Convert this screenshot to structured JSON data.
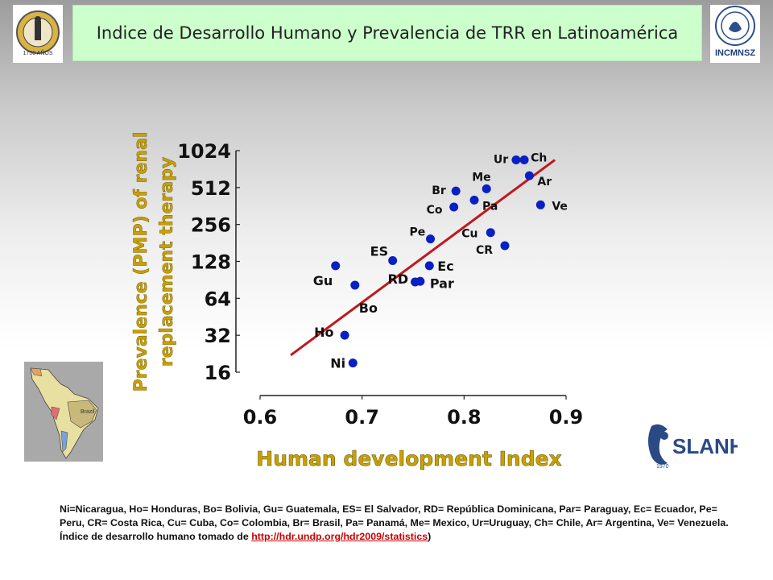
{
  "header": {
    "title": "Indice de Desarrollo Humano y Prevalencia de TRR en Latinoamérica",
    "logo_left_text": "1750 AÑOS",
    "logo_right_text": "INCMNSZ",
    "logo_bottom_text": "SLANH",
    "logo_bottom_year": "1970"
  },
  "map": {
    "label": "Brazil"
  },
  "chart_data": {
    "type": "scatter",
    "xlabel": "Human development Index",
    "ylabel_line1": "Prevalence (PMP) of renal",
    "ylabel_line2": "replacement therapy",
    "xlim": [
      0.6,
      0.9
    ],
    "ylim": [
      16,
      1024
    ],
    "y_scale": "log2",
    "x_ticks": [
      "0.6",
      "0.7",
      "0.8",
      "0.9"
    ],
    "y_ticks": [
      "16",
      "32",
      "64",
      "128",
      "256",
      "512",
      "1024"
    ],
    "points": [
      {
        "label": "Ni",
        "x": 0.691,
        "y": 19
      },
      {
        "label": "Ho",
        "x": 0.683,
        "y": 32
      },
      {
        "label": "Gu",
        "x": 0.674,
        "y": 118
      },
      {
        "label": "Bo",
        "x": 0.693,
        "y": 82
      },
      {
        "label": "ES",
        "x": 0.73,
        "y": 130
      },
      {
        "label": "RD",
        "x": 0.752,
        "y": 87
      },
      {
        "label": "Par",
        "x": 0.757,
        "y": 88
      },
      {
        "label": "Ec",
        "x": 0.766,
        "y": 118
      },
      {
        "label": "Pe",
        "x": 0.767,
        "y": 195
      },
      {
        "label": "Co",
        "x": 0.79,
        "y": 355
      },
      {
        "label": "Br",
        "x": 0.792,
        "y": 480
      },
      {
        "label": "Pa",
        "x": 0.81,
        "y": 405
      },
      {
        "label": "Me",
        "x": 0.822,
        "y": 500
      },
      {
        "label": "Cu",
        "x": 0.826,
        "y": 220
      },
      {
        "label": "CR",
        "x": 0.84,
        "y": 172
      },
      {
        "label": "Ur",
        "x": 0.851,
        "y": 860
      },
      {
        "label": "Ch",
        "x": 0.859,
        "y": 860
      },
      {
        "label": "Ar",
        "x": 0.864,
        "y": 640
      },
      {
        "label": "Ve",
        "x": 0.875,
        "y": 370
      }
    ],
    "trendline": {
      "x": [
        0.63,
        0.889
      ],
      "y": [
        22,
        860
      ]
    },
    "point_color": "#0a1fc4",
    "line_color": "#c0181c",
    "axis_title_color": "#c8a000"
  },
  "caption": {
    "text": "Ni=Nicaragua, Ho= Honduras, Bo= Bolivia, Gu= Guatemala, ES= El Salvador, RD= República Dominicana, Par= Paraguay, Ec= Ecuador, Pe= Peru, CR= Costa Rica, Cu= Cuba, Co= Colombia, Br= Brasil, Pa= Panamá, Me= Mexico, Ur=Uruguay, Ch= Chile, Ar= Argentina, Ve= Venezuela. Índice de desarrollo humano tomado de ",
    "link": "http://hdr.undp.org/hdr2009/statistics",
    "suffix": ")"
  }
}
